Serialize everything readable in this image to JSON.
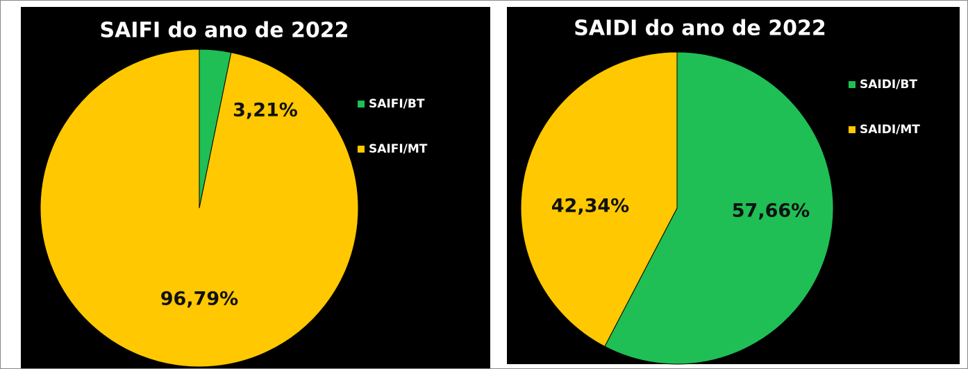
{
  "chart_data": [
    {
      "type": "pie",
      "title": "SAIFI do ano de 2022",
      "categories": [
        "SAIFI/BT",
        "SAIFI/MT"
      ],
      "values": [
        3.21,
        96.79
      ],
      "value_labels": [
        "3,21%",
        "96,79%"
      ],
      "colors": [
        "#1fbf55",
        "#ffc800"
      ],
      "legend": "right"
    },
    {
      "type": "pie",
      "title": "SAIDI do ano de 2022",
      "categories": [
        "SAIDI/BT",
        "SAIDI/MT"
      ],
      "values": [
        57.66,
        42.34
      ],
      "value_labels": [
        "57,66%",
        "42,34%"
      ],
      "colors": [
        "#1fbf55",
        "#ffc800"
      ],
      "legend": "right"
    }
  ]
}
